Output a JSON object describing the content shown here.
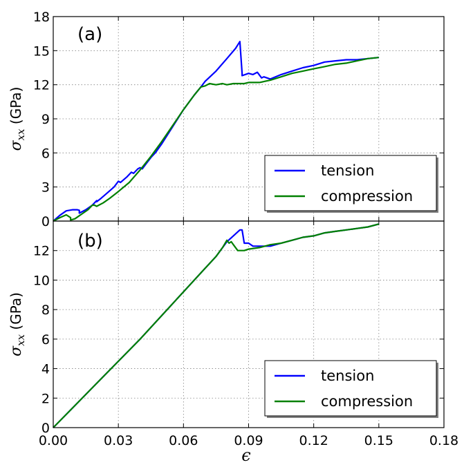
{
  "chart_data": [
    {
      "type": "line",
      "panel_label": "(a)",
      "ylabel_symbol": "σ",
      "ylabel_sub": "xx",
      "ylabel_unit": "(GPa)",
      "xlim": [
        0,
        0.18
      ],
      "ylim": [
        0,
        18
      ],
      "xticks": [
        "0.00",
        "0.03",
        "0.06",
        "0.09",
        "0.12",
        "0.15",
        "0.18"
      ],
      "yticks": [
        "0",
        "3",
        "6",
        "9",
        "12",
        "15",
        "18"
      ],
      "grid": true,
      "legend_position": "lower-right",
      "series": [
        {
          "name": "tension",
          "color": "#0000ff",
          "points": [
            [
              0,
              0
            ],
            [
              0.003,
              0.5
            ],
            [
              0.006,
              0.9
            ],
            [
              0.009,
              1.0
            ],
            [
              0.011,
              1.0
            ],
            [
              0.012,
              0.95
            ],
            [
              0.012,
              0.7
            ],
            [
              0.015,
              1.0
            ],
            [
              0.018,
              1.4
            ],
            [
              0.02,
              1.8
            ],
            [
              0.02,
              1.7
            ],
            [
              0.022,
              2.0
            ],
            [
              0.025,
              2.5
            ],
            [
              0.028,
              3.0
            ],
            [
              0.03,
              3.5
            ],
            [
              0.031,
              3.4
            ],
            [
              0.034,
              3.9
            ],
            [
              0.036,
              4.3
            ],
            [
              0.037,
              4.2
            ],
            [
              0.039,
              4.6
            ],
            [
              0.04,
              4.7
            ],
            [
              0.041,
              4.6
            ],
            [
              0.043,
              5.1
            ],
            [
              0.045,
              5.6
            ],
            [
              0.047,
              6.0
            ],
            [
              0.05,
              6.8
            ],
            [
              0.055,
              8.3
            ],
            [
              0.06,
              9.8
            ],
            [
              0.065,
              11.1
            ],
            [
              0.068,
              11.8
            ],
            [
              0.07,
              12.3
            ],
            [
              0.075,
              13.2
            ],
            [
              0.08,
              14.3
            ],
            [
              0.084,
              15.2
            ],
            [
              0.086,
              15.8
            ],
            [
              0.087,
              13.0
            ],
            [
              0.087,
              12.8
            ],
            [
              0.09,
              13.0
            ],
            [
              0.092,
              12.9
            ],
            [
              0.094,
              13.1
            ],
            [
              0.096,
              12.6
            ],
            [
              0.097,
              12.7
            ],
            [
              0.1,
              12.5
            ],
            [
              0.105,
              12.9
            ],
            [
              0.11,
              13.2
            ],
            [
              0.115,
              13.5
            ],
            [
              0.12,
              13.7
            ],
            [
              0.125,
              14.0
            ],
            [
              0.13,
              14.1
            ],
            [
              0.135,
              14.2
            ],
            [
              0.14,
              14.2
            ],
            [
              0.145,
              14.3
            ],
            [
              0.15,
              14.4
            ]
          ]
        },
        {
          "name": "compression",
          "color": "#008000",
          "points": [
            [
              0,
              0
            ],
            [
              0.003,
              0.3
            ],
            [
              0.006,
              0.55
            ],
            [
              0.008,
              0.3
            ],
            [
              0.008,
              0.1
            ],
            [
              0.01,
              0.2
            ],
            [
              0.013,
              0.6
            ],
            [
              0.016,
              1.0
            ],
            [
              0.018,
              1.4
            ],
            [
              0.019,
              1.4
            ],
            [
              0.02,
              1.3
            ],
            [
              0.023,
              1.6
            ],
            [
              0.026,
              2.0
            ],
            [
              0.03,
              2.6
            ],
            [
              0.035,
              3.4
            ],
            [
              0.04,
              4.5
            ],
            [
              0.045,
              5.7
            ],
            [
              0.05,
              7.0
            ],
            [
              0.055,
              8.4
            ],
            [
              0.06,
              9.8
            ],
            [
              0.065,
              11.1
            ],
            [
              0.068,
              11.8
            ],
            [
              0.07,
              11.9
            ],
            [
              0.072,
              12.1
            ],
            [
              0.075,
              12.0
            ],
            [
              0.078,
              12.1
            ],
            [
              0.08,
              12.0
            ],
            [
              0.083,
              12.1
            ],
            [
              0.086,
              12.1
            ],
            [
              0.088,
              12.1
            ],
            [
              0.09,
              12.2
            ],
            [
              0.095,
              12.2
            ],
            [
              0.1,
              12.4
            ],
            [
              0.105,
              12.7
            ],
            [
              0.11,
              13.0
            ],
            [
              0.115,
              13.2
            ],
            [
              0.12,
              13.4
            ],
            [
              0.125,
              13.6
            ],
            [
              0.13,
              13.8
            ],
            [
              0.135,
              13.9
            ],
            [
              0.14,
              14.1
            ],
            [
              0.145,
              14.3
            ],
            [
              0.15,
              14.4
            ]
          ]
        }
      ]
    },
    {
      "type": "line",
      "panel_label": "(b)",
      "ylabel_symbol": "σ",
      "ylabel_sub": "xx",
      "ylabel_unit": "(GPa)",
      "xlabel": "ϵ",
      "xlim": [
        0,
        0.18
      ],
      "ylim": [
        0,
        14
      ],
      "xticks": [
        "0.00",
        "0.03",
        "0.06",
        "0.09",
        "0.12",
        "0.15",
        "0.18"
      ],
      "yticks": [
        "0",
        "2",
        "4",
        "6",
        "8",
        "10",
        "12"
      ],
      "grid": true,
      "legend_position": "lower-right",
      "series": [
        {
          "name": "tension",
          "color": "#0000ff",
          "points": [
            [
              0,
              0
            ],
            [
              0.01,
              1.5
            ],
            [
              0.02,
              3.0
            ],
            [
              0.03,
              4.5
            ],
            [
              0.04,
              6.0
            ],
            [
              0.05,
              7.6
            ],
            [
              0.06,
              9.2
            ],
            [
              0.07,
              10.8
            ],
            [
              0.075,
              11.6
            ],
            [
              0.08,
              12.6
            ],
            [
              0.083,
              13.0
            ],
            [
              0.086,
              13.4
            ],
            [
              0.087,
              13.4
            ],
            [
              0.088,
              12.5
            ],
            [
              0.09,
              12.5
            ],
            [
              0.092,
              12.3
            ],
            [
              0.095,
              12.3
            ],
            [
              0.1,
              12.3
            ],
            [
              0.105,
              12.5
            ],
            [
              0.11,
              12.7
            ],
            [
              0.115,
              12.9
            ],
            [
              0.12,
              13.0
            ],
            [
              0.125,
              13.2
            ],
            [
              0.13,
              13.3
            ],
            [
              0.135,
              13.4
            ],
            [
              0.14,
              13.5
            ],
            [
              0.145,
              13.6
            ],
            [
              0.15,
              13.8
            ]
          ]
        },
        {
          "name": "compression",
          "color": "#008000",
          "points": [
            [
              0,
              0
            ],
            [
              0.01,
              1.5
            ],
            [
              0.02,
              3.0
            ],
            [
              0.03,
              4.5
            ],
            [
              0.04,
              6.0
            ],
            [
              0.05,
              7.6
            ],
            [
              0.06,
              9.2
            ],
            [
              0.07,
              10.8
            ],
            [
              0.075,
              11.6
            ],
            [
              0.078,
              12.2
            ],
            [
              0.08,
              12.7
            ],
            [
              0.081,
              12.5
            ],
            [
              0.082,
              12.6
            ],
            [
              0.083,
              12.4
            ],
            [
              0.085,
              12.0
            ],
            [
              0.088,
              12.0
            ],
            [
              0.09,
              12.1
            ],
            [
              0.095,
              12.2
            ],
            [
              0.1,
              12.4
            ],
            [
              0.105,
              12.5
            ],
            [
              0.11,
              12.7
            ],
            [
              0.115,
              12.9
            ],
            [
              0.12,
              13.0
            ],
            [
              0.125,
              13.2
            ],
            [
              0.13,
              13.3
            ],
            [
              0.135,
              13.4
            ],
            [
              0.14,
              13.5
            ],
            [
              0.145,
              13.6
            ],
            [
              0.15,
              13.8
            ]
          ]
        }
      ]
    }
  ]
}
